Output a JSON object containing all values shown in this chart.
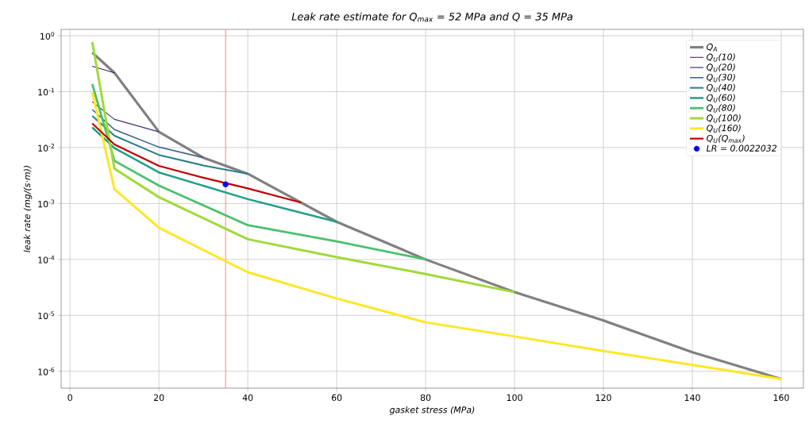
{
  "chart_data": {
    "type": "line",
    "title": "*Leak rate estimate for Q$_{max}$ = 52 MPa and Q = 35 MPa*",
    "xlabel": "*gasket stress (MPa)*",
    "ylabel": "*leak rate (mg/(s·m))*",
    "xlim": [
      -2,
      165
    ],
    "ylim": [
      5e-07,
      1.3
    ],
    "xticks": [
      0,
      20,
      40,
      60,
      80,
      100,
      120,
      140,
      160
    ],
    "yticks": [
      {
        "value": 1,
        "label": "10$^{0}$"
      },
      {
        "value": 0.1,
        "label": "10$^{-1}$"
      },
      {
        "value": 0.01,
        "label": "10$^{-2}$"
      },
      {
        "value": 0.001,
        "label": "10$^{-3}$"
      },
      {
        "value": 0.0001,
        "label": "10$^{-4}$"
      },
      {
        "value": 1e-05,
        "label": "10$^{-5}$"
      },
      {
        "value": 1e-06,
        "label": "10$^{-6}$"
      }
    ],
    "log": "y",
    "grid": true,
    "legend": "top right",
    "ref_lines": [
      {
        "axis": "x",
        "value": 35,
        "color": "#ff8080"
      }
    ],
    "series": [
      {
        "name": "*Q$_{A}$*",
        "color": "#808080",
        "x": [
          5,
          10,
          20,
          30,
          40,
          60,
          80,
          100,
          120,
          140,
          160
        ],
        "values": [
          0.5,
          0.217,
          0.0191,
          0.0066,
          0.0034,
          0.00047,
          0.0001,
          2.6e-05,
          8.1e-06,
          2.2e-06,
          7.3e-07
        ]
      },
      {
        "name": "*Q$_{U}$(10)*",
        "color": "#440154",
        "x": [
          5,
          10
        ],
        "values": [
          0.285,
          0.217
        ]
      },
      {
        "name": "*Q$_{U}$(20)*",
        "color": "#46327e",
        "x": [
          5,
          10,
          20
        ],
        "values": [
          0.066,
          0.032,
          0.0191
        ]
      },
      {
        "name": "*Q$_{U}$(30)*",
        "color": "#365c8d",
        "x": [
          5,
          10,
          20,
          30
        ],
        "values": [
          0.048,
          0.021,
          0.0102,
          0.0066
        ]
      },
      {
        "name": "*Q$_{U}$(40)*",
        "color": "#277f8e",
        "x": [
          5,
          10,
          20,
          30,
          40
        ],
        "values": [
          0.037,
          0.0163,
          0.0074,
          0.0048,
          0.0034
        ]
      },
      {
        "name": "*Q$_{U}$(60)*",
        "color": "#1fa187",
        "x": [
          5,
          10,
          20,
          40,
          60
        ],
        "values": [
          0.023,
          0.0098,
          0.0036,
          0.0012,
          0.00047
        ]
      },
      {
        "name": "*Q$_{U}$(80)*",
        "color": "#4ac16d",
        "x": [
          5,
          10,
          20,
          40,
          60,
          80
        ],
        "values": [
          0.137,
          0.0058,
          0.0021,
          0.00041,
          0.00021,
          0.0001
        ]
      },
      {
        "name": "*Q$_{U}$(100)*",
        "color": "#a0da39",
        "x": [
          5,
          10,
          20,
          40,
          60,
          80,
          100
        ],
        "values": [
          0.78,
          0.0042,
          0.0013,
          0.00023,
          0.00011,
          5.5e-05,
          2.6e-05
        ]
      },
      {
        "name": "*Q$_{U}$(160)*",
        "color": "#fde725",
        "x": [
          5,
          10,
          20,
          40,
          60,
          80,
          100,
          120,
          140,
          160
        ],
        "values": [
          0.098,
          0.0018,
          0.00037,
          5.9e-05,
          2e-05,
          7.5e-06,
          4.2e-06,
          2.3e-06,
          1.3e-06,
          7.3e-07
        ]
      },
      {
        "name": "*Q$_{U}$(Q$_{max}$)*",
        "color": "#c00000",
        "x": [
          5,
          10,
          20,
          30,
          40,
          52
        ],
        "values": [
          0.027,
          0.0114,
          0.0047,
          0.0029,
          0.00186,
          0.00104
        ]
      },
      {
        "name": "*LR = 0.0022032*",
        "color": "#0000ff",
        "type": "scatter",
        "marker": "circle",
        "x": [
          35
        ],
        "values": [
          0.0022032
        ]
      }
    ]
  }
}
